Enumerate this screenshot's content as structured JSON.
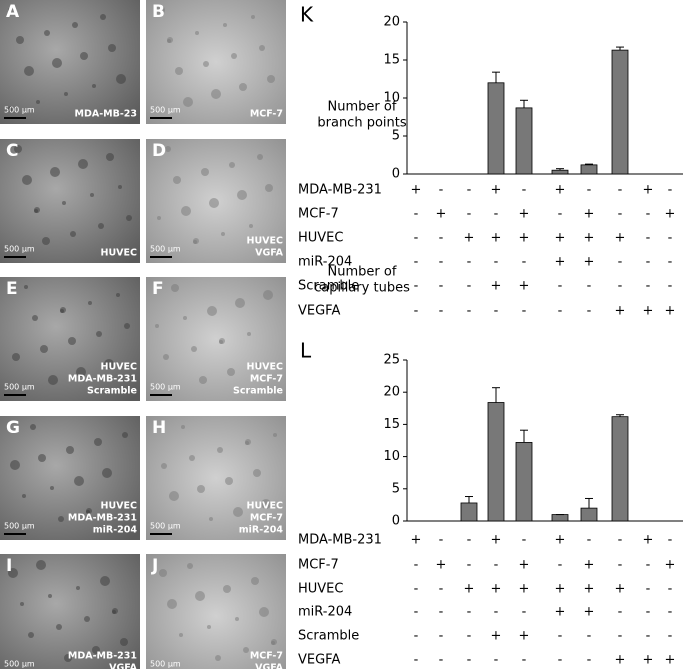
{
  "panels": [
    {
      "letter": "A",
      "caption": [
        "MDA-MB-23"
      ],
      "scale": "500 µm"
    },
    {
      "letter": "B",
      "caption": [
        "MCF-7"
      ],
      "scale": "500 µm"
    },
    {
      "letter": "C",
      "caption": [
        "HUVEC"
      ],
      "scale": "500 µm"
    },
    {
      "letter": "D",
      "caption": [
        "HUVEC",
        "VGFA"
      ],
      "scale": "500 µm"
    },
    {
      "letter": "E",
      "caption": [
        "HUVEC",
        "MDA-MB-231",
        "Scramble"
      ],
      "scale": "500 µm"
    },
    {
      "letter": "F",
      "caption": [
        "HUVEC",
        "MCF-7",
        "Scramble"
      ],
      "scale": "500 µm"
    },
    {
      "letter": "G",
      "caption": [
        "HUVEC",
        "MDA-MB-231",
        "miR-204"
      ],
      "scale": "500 µm"
    },
    {
      "letter": "H",
      "caption": [
        "HUVEC",
        "MCF-7",
        "miR-204"
      ],
      "scale": "500 µm"
    },
    {
      "letter": "I",
      "caption": [
        "MDA-MB-231",
        "VGFA"
      ],
      "scale": "500 µm"
    },
    {
      "letter": "J",
      "caption": [
        "MCF-7",
        "VGFA"
      ],
      "scale": "500 µm"
    }
  ],
  "chart_data": [
    {
      "type": "bar",
      "title": "K",
      "ylabel": [
        "Number of",
        "branch points"
      ],
      "categories": [
        null,
        null,
        null,
        null,
        null,
        null,
        null,
        null,
        null,
        null
      ],
      "values": [
        0,
        0,
        0,
        12,
        8.7,
        0.5,
        1.2,
        16.3,
        0,
        0
      ],
      "errors": [
        0,
        0,
        0,
        1.4,
        1.0,
        0.2,
        0.1,
        0.4,
        0,
        0
      ],
      "color": "#787878",
      "ylim": [
        0,
        20
      ],
      "yticks": [
        0,
        5,
        10,
        15,
        20
      ],
      "conditions": [
        {
          "name": "MDA-MB-231",
          "marks": [
            "+",
            "-",
            "-",
            "+",
            "-",
            "+",
            "-",
            "-",
            "+",
            "-"
          ]
        },
        {
          "name": "MCF-7",
          "marks": [
            "-",
            "+",
            "-",
            "-",
            "+",
            "-",
            "+",
            "-",
            "-",
            "+"
          ]
        },
        {
          "name": "HUVEC",
          "marks": [
            "-",
            "-",
            "+",
            "+",
            "+",
            "+",
            "+",
            "+",
            "-",
            "-"
          ]
        },
        {
          "name": "miR-204",
          "marks": [
            "-",
            "-",
            "-",
            "-",
            "-",
            "+",
            "+",
            "-",
            "-",
            "-"
          ]
        },
        {
          "name": "Scramble",
          "marks": [
            "-",
            "-",
            "-",
            "+",
            "+",
            "-",
            "-",
            "-",
            "-",
            "-"
          ]
        },
        {
          "name": "VEGFA",
          "marks": [
            "-",
            "-",
            "-",
            "-",
            "-",
            "-",
            "-",
            "+",
            "+",
            "+"
          ]
        }
      ]
    },
    {
      "type": "bar",
      "title": "L",
      "ylabel": [
        "Number of",
        "capillary tubes"
      ],
      "categories": [
        null,
        null,
        null,
        null,
        null,
        null,
        null,
        null,
        null,
        null
      ],
      "values": [
        0,
        0,
        2.8,
        18.4,
        12.2,
        1.0,
        2.0,
        16.2,
        0,
        0
      ],
      "errors": [
        0,
        0,
        1.0,
        2.3,
        1.9,
        0,
        1.5,
        0.3,
        0,
        0
      ],
      "color": "#787878",
      "ylim": [
        0,
        25
      ],
      "yticks": [
        0,
        5,
        10,
        15,
        20,
        25
      ],
      "conditions": [
        {
          "name": "MDA-MB-231",
          "marks": [
            "+",
            "-",
            "-",
            "+",
            "-",
            "+",
            "-",
            "-",
            "+",
            "-"
          ]
        },
        {
          "name": "MCF-7",
          "marks": [
            "-",
            "+",
            "-",
            "-",
            "+",
            "-",
            "+",
            "-",
            "-",
            "+"
          ]
        },
        {
          "name": "HUVEC",
          "marks": [
            "-",
            "-",
            "+",
            "+",
            "+",
            "+",
            "+",
            "+",
            "-",
            "-"
          ]
        },
        {
          "name": "miR-204",
          "marks": [
            "-",
            "-",
            "-",
            "-",
            "-",
            "+",
            "+",
            "-",
            "-",
            "-"
          ]
        },
        {
          "name": "Scramble",
          "marks": [
            "-",
            "-",
            "-",
            "+",
            "+",
            "-",
            "-",
            "-",
            "-",
            "-"
          ]
        },
        {
          "name": "VEGFA",
          "marks": [
            "-",
            "-",
            "-",
            "-",
            "-",
            "-",
            "-",
            "+",
            "+",
            "+"
          ]
        }
      ]
    }
  ]
}
